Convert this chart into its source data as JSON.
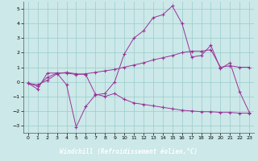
{
  "xlabel": "Windchill (Refroidissement éolien,°C)",
  "background_color": "#cce8e8",
  "plot_bg_color": "#cce8e8",
  "line_color": "#993399",
  "grid_color": "#99cccc",
  "xlabel_bg": "#6633aa",
  "xlim": [
    -0.5,
    23.5
  ],
  "ylim": [
    -3.5,
    5.5
  ],
  "yticks": [
    -3,
    -2,
    -1,
    0,
    1,
    2,
    3,
    4,
    5
  ],
  "xticks": [
    0,
    1,
    2,
    3,
    4,
    5,
    6,
    7,
    8,
    9,
    10,
    11,
    12,
    13,
    14,
    15,
    16,
    17,
    18,
    19,
    20,
    21,
    22,
    23
  ],
  "series": [
    {
      "x": [
        0,
        1,
        2,
        3,
        4,
        5,
        6,
        7,
        8,
        9,
        10,
        11,
        12,
        13,
        14,
        15,
        16,
        17,
        18,
        19,
        20,
        21,
        22,
        23
      ],
      "y": [
        -0.1,
        -0.5,
        0.6,
        0.6,
        -0.2,
        -3.1,
        -1.7,
        -0.9,
        -0.8,
        0.0,
        1.9,
        3.0,
        3.5,
        4.4,
        4.6,
        5.2,
        4.0,
        1.7,
        1.8,
        2.5,
        0.9,
        1.3,
        -0.7,
        -2.1
      ]
    },
    {
      "x": [
        0,
        1,
        2,
        3,
        4,
        5,
        6,
        7,
        8,
        9,
        10,
        11,
        12,
        13,
        14,
        15,
        16,
        17,
        18,
        19,
        20,
        21,
        22,
        23
      ],
      "y": [
        -0.1,
        -0.3,
        0.3,
        0.6,
        0.6,
        0.5,
        0.55,
        0.65,
        0.75,
        0.85,
        1.0,
        1.15,
        1.3,
        1.5,
        1.65,
        1.8,
        2.0,
        2.1,
        2.1,
        2.2,
        1.0,
        1.1,
        1.0,
        1.0
      ]
    },
    {
      "x": [
        0,
        1,
        2,
        3,
        4,
        5,
        6,
        7,
        8,
        9,
        10,
        11,
        12,
        13,
        14,
        15,
        16,
        17,
        18,
        19,
        20,
        21,
        22,
        23
      ],
      "y": [
        -0.1,
        -0.2,
        0.1,
        0.55,
        0.65,
        0.55,
        0.5,
        -0.85,
        -1.0,
        -0.8,
        -1.2,
        -1.45,
        -1.55,
        -1.65,
        -1.75,
        -1.85,
        -1.95,
        -2.0,
        -2.05,
        -2.05,
        -2.1,
        -2.1,
        -2.15,
        -2.15
      ]
    }
  ]
}
